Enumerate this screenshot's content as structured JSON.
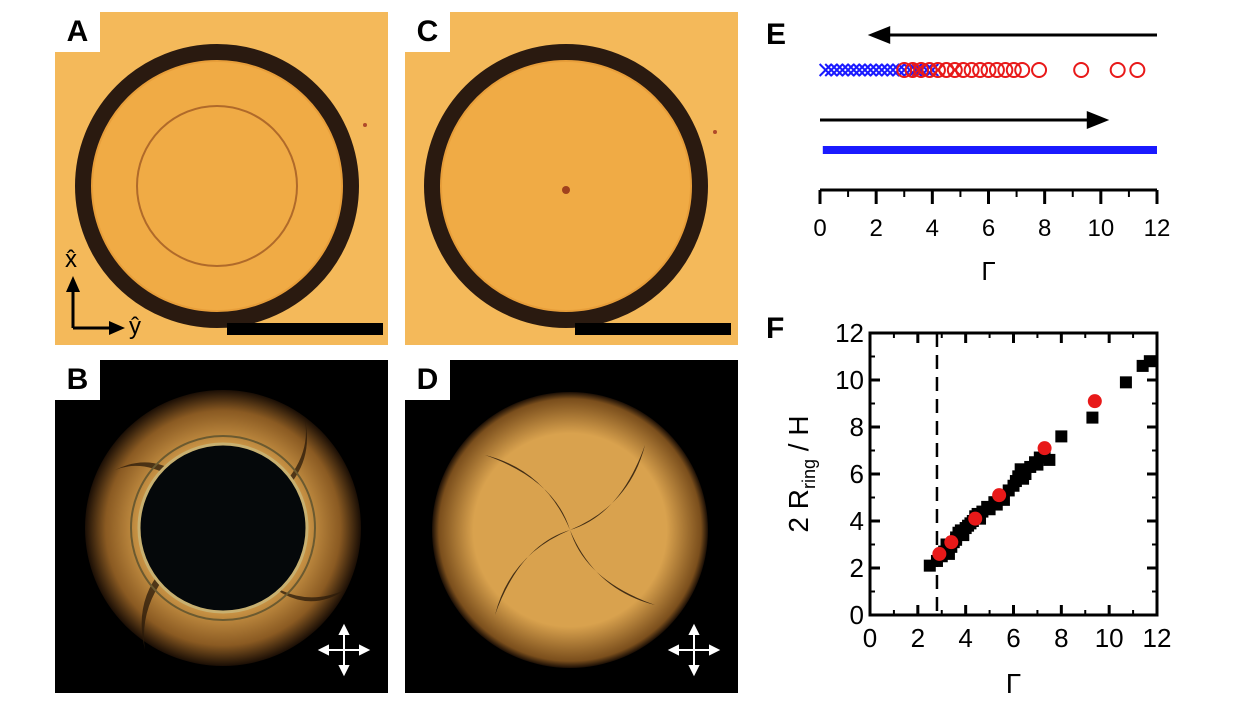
{
  "panels": {
    "a": "A",
    "b": "B",
    "c": "C",
    "d": "D",
    "e": "E",
    "f": "F"
  },
  "axes_glyphs": {
    "x": "x̂",
    "y": "ŷ"
  },
  "colors": {
    "brightfield": "#f4b95a",
    "ring_dark": "#2a1a10",
    "birefringence": "#d9a24e",
    "red": "#e81919",
    "blue": "#1a1aff",
    "black": "#000000"
  },
  "chart_data": [
    {
      "panel": "E",
      "type": "scatter",
      "xlabel": "Γ",
      "xlim": [
        0,
        12
      ],
      "xticks": [
        "0",
        "2",
        "4",
        "6",
        "8",
        "10",
        "12"
      ],
      "rows": [
        {
          "arrow": "left",
          "series": [
            {
              "marker": "x",
              "color": "#1a1aff",
              "values": [
                0.2,
                0.4,
                0.6,
                0.8,
                1.0,
                1.2,
                1.4,
                1.6,
                1.8,
                2.0,
                2.2,
                2.4,
                2.6,
                2.8,
                3.0,
                3.2,
                3.4,
                3.6,
                3.8,
                4.0
              ]
            },
            {
              "marker": "x",
              "color": "#e81919",
              "values": [
                3.5,
                4.2,
                4.8
              ]
            },
            {
              "marker": "o",
              "color": "#e81919",
              "values": [
                3.0,
                3.3,
                3.6,
                3.9,
                4.2,
                4.5,
                4.8,
                5.1,
                5.4,
                5.7,
                6.0,
                6.3,
                6.6,
                6.9,
                7.2,
                7.8,
                9.3,
                10.6,
                11.3
              ]
            }
          ]
        },
        {
          "arrow": "right",
          "series": [
            {
              "marker": "line",
              "color": "#1a1aff",
              "range": [
                0.1,
                12
              ]
            }
          ]
        }
      ]
    },
    {
      "panel": "F",
      "type": "scatter",
      "xlabel": "Γ",
      "ylabel": "2 R",
      "ylabel_sub": "ring",
      "ylabel_tail": " / H",
      "xlim": [
        0,
        12
      ],
      "ylim": [
        0,
        12
      ],
      "xticks": [
        "0",
        "2",
        "4",
        "6",
        "8",
        "10",
        "12"
      ],
      "yticks": [
        "0",
        "2",
        "4",
        "6",
        "8",
        "10",
        "12"
      ],
      "vline": 2.8,
      "series": [
        {
          "marker": "square",
          "color": "#000000",
          "points": [
            [
              2.5,
              2.1
            ],
            [
              2.8,
              2.3
            ],
            [
              3.0,
              2.5
            ],
            [
              3.1,
              2.7
            ],
            [
              3.3,
              2.6
            ],
            [
              3.4,
              2.9
            ],
            [
              3.5,
              3.1
            ],
            [
              3.6,
              3.3
            ],
            [
              3.7,
              3.5
            ],
            [
              3.9,
              3.4
            ],
            [
              4.0,
              3.7
            ],
            [
              4.1,
              3.8
            ],
            [
              4.3,
              4.0
            ],
            [
              4.4,
              4.2
            ],
            [
              4.5,
              4.3
            ],
            [
              4.7,
              4.4
            ],
            [
              4.9,
              4.6
            ],
            [
              5.0,
              4.5
            ],
            [
              5.2,
              4.8
            ],
            [
              5.4,
              5.0
            ],
            [
              5.5,
              5.1
            ],
            [
              5.6,
              4.9
            ],
            [
              5.8,
              5.3
            ],
            [
              6.0,
              5.5
            ],
            [
              6.1,
              5.7
            ],
            [
              6.2,
              5.9
            ],
            [
              6.3,
              6.2
            ],
            [
              6.5,
              6.0
            ],
            [
              6.7,
              6.3
            ],
            [
              6.9,
              6.5
            ],
            [
              7.1,
              6.7
            ],
            [
              7.3,
              6.8
            ],
            [
              7.5,
              6.6
            ],
            [
              8.0,
              7.6
            ],
            [
              9.3,
              8.4
            ],
            [
              10.7,
              9.9
            ],
            [
              11.4,
              10.6
            ],
            [
              11.7,
              10.8
            ],
            [
              3.2,
              3.0
            ],
            [
              3.8,
              3.6
            ],
            [
              4.6,
              4.1
            ],
            [
              5.3,
              4.7
            ],
            [
              6.4,
              5.8
            ],
            [
              7.0,
              6.4
            ],
            [
              4.2,
              3.9
            ],
            [
              3.6,
              3.2
            ]
          ]
        },
        {
          "marker": "circle",
          "color": "#e81919",
          "points": [
            [
              2.9,
              2.6
            ],
            [
              3.4,
              3.1
            ],
            [
              4.4,
              4.1
            ],
            [
              5.4,
              5.1
            ],
            [
              7.3,
              7.1
            ],
            [
              9.4,
              9.1
            ]
          ]
        }
      ]
    }
  ]
}
